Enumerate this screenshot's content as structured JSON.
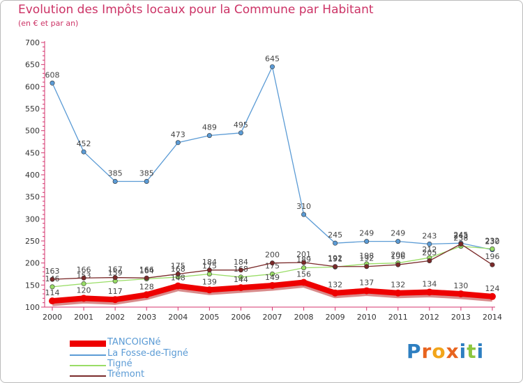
{
  "title": "Evolution des Impôts locaux pour la Commune par Habitant",
  "subtitle": "(en € et par an)",
  "logo_text": "Proxiti",
  "chart_data": {
    "type": "line",
    "title": "Evolution des Impôts locaux pour la Commune par Habitant",
    "subtitle": "(en € et par an)",
    "xlabel": "",
    "ylabel": "",
    "categories": [
      "2000",
      "2001",
      "2002",
      "2003",
      "2004",
      "2005",
      "2006",
      "2007",
      "2008",
      "2009",
      "2010",
      "2011",
      "2012",
      "2013",
      "2014"
    ],
    "yticks": [
      "100",
      "150",
      "200",
      "250",
      "300",
      "350",
      "400",
      "450",
      "500",
      "550",
      "600",
      "650",
      "700"
    ],
    "ylim": [
      100,
      700
    ],
    "grid": false,
    "legend_position": "bottom-left",
    "series": [
      {
        "name": "La Fosse-de-Tigné",
        "color": "#5b9bd5",
        "values": [
          608,
          452,
          385,
          385,
          473,
          489,
          495,
          645,
          310,
          245,
          249,
          249,
          243,
          245,
          230
        ],
        "labels": [
          "608",
          "452",
          "385",
          "385",
          "473",
          "489",
          "495",
          "645",
          "310",
          "245",
          "249",
          "249",
          "243",
          "245",
          "230"
        ]
      },
      {
        "name": "Tigné",
        "color": "#99dd66",
        "values": [
          146,
          153,
          159,
          164,
          168,
          175,
          168,
          175,
          189,
          191,
          198,
          200,
          212,
          238,
          232
        ],
        "labels": [
          "146",
          "153",
          "159",
          "164",
          "168",
          "175",
          "168",
          "175",
          "189",
          "191",
          "198",
          "200",
          "212",
          "238",
          "232"
        ]
      },
      {
        "name": "Trémont",
        "color": "#7a2a2a",
        "values": [
          163,
          166,
          167,
          166,
          175,
          184,
          184,
          200,
          201,
          192,
          192,
          196,
          205,
          243,
          196
        ],
        "labels": [
          "163",
          "166",
          "167",
          "166",
          "175",
          "184",
          "184",
          "200",
          "201",
          "192",
          "192",
          "196",
          "205",
          "243",
          "196"
        ]
      },
      {
        "name": "TANCOIGNé",
        "color": "#ee0000",
        "values": [
          114,
          120,
          117,
          128,
          148,
          139,
          144,
          149,
          156,
          132,
          137,
          132,
          134,
          130,
          124
        ],
        "labels": [
          "114",
          "120",
          "117",
          "128",
          "148",
          "139",
          "144",
          "149",
          "156",
          "132",
          "137",
          "132",
          "134",
          "130",
          "124"
        ]
      }
    ],
    "legend": [
      {
        "name": "TANCOIGNé",
        "color": "#ee0000"
      },
      {
        "name": "La Fosse-de-Tigné",
        "color": "#5b9bd5"
      },
      {
        "name": "Tigné",
        "color": "#99dd66"
      },
      {
        "name": "Trémont",
        "color": "#7a2a2a"
      }
    ]
  }
}
